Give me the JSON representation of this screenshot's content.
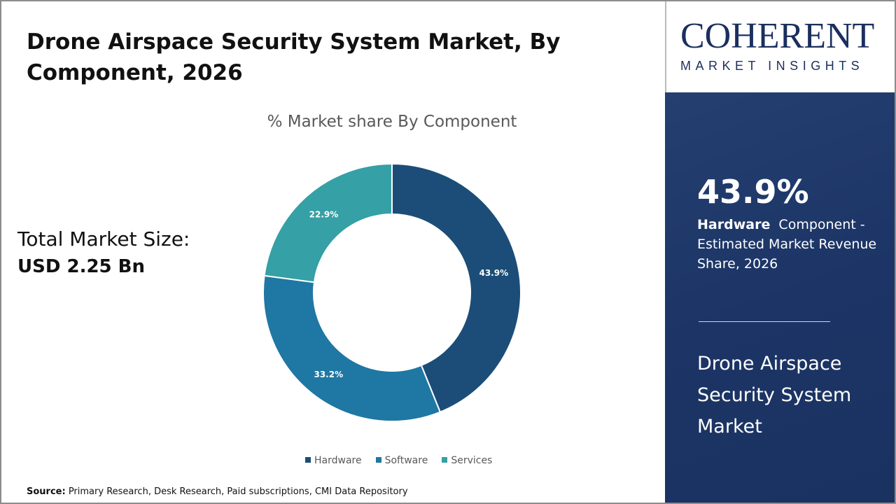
{
  "title": "Drone Airspace Security System Market,  By Component, 2026",
  "total_market": {
    "label": "Total Market Size:",
    "value": "USD 2.25 Bn"
  },
  "source": {
    "label": "Source:",
    "text": " Primary Research, Desk Research, Paid subscriptions, CMI Data Repository"
  },
  "logo": {
    "line1": "COHERENT",
    "line2": "MARKET INSIGHTS"
  },
  "panel": {
    "percent": "43.9%",
    "segment": "Hardware",
    "desc": "Component - Estimated Market Revenue Share, 2026",
    "market": "Drone Airspace Security System Market"
  },
  "chart_data": {
    "type": "pie",
    "variant": "donut",
    "title": "% Market share  By Component",
    "categories": [
      "Hardware",
      "Software",
      "Services"
    ],
    "values": [
      43.9,
      33.2,
      22.9
    ],
    "labels": [
      "43.9%",
      "33.2%",
      "22.9%"
    ],
    "colors": [
      "#1b4d78",
      "#1f77a3",
      "#35a0a5"
    ],
    "legend": "bottom"
  }
}
